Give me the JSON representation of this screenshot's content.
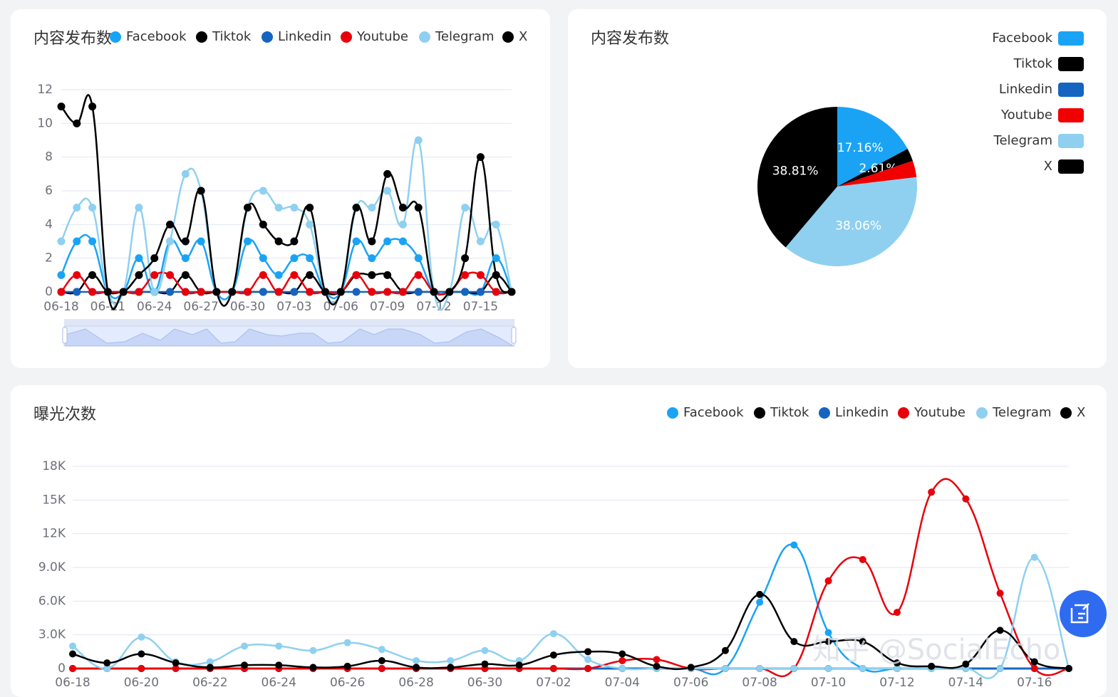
{
  "chart_data": [
    {
      "type": "line",
      "title": "内容发布数",
      "categories": [
        "06-18",
        null,
        null,
        "06-21",
        null,
        null,
        "06-24",
        null,
        null,
        "06-27",
        null,
        null,
        "06-30",
        null,
        null,
        "07-03",
        null,
        null,
        "07-06",
        null,
        null,
        "07-09",
        null,
        null,
        "07-12",
        null,
        null,
        "07-15",
        null,
        null
      ],
      "series": [
        {
          "name": "Facebook",
          "color": "#1aa3f5",
          "values": [
            1,
            3,
            3,
            0,
            0,
            2,
            0,
            3,
            2,
            3,
            0,
            0,
            3,
            2,
            1,
            2,
            2,
            0,
            0,
            3,
            2,
            3,
            3,
            2,
            0,
            0,
            0,
            0,
            2,
            0
          ]
        },
        {
          "name": "Tiktok",
          "color": "#000000",
          "values": [
            0,
            0,
            1,
            0,
            0,
            0,
            0,
            0,
            1,
            0,
            0,
            0,
            0,
            0,
            0,
            0,
            1,
            0,
            0,
            1,
            1,
            1,
            0,
            0,
            0,
            0,
            0,
            0,
            1,
            0
          ]
        },
        {
          "name": "Linkedin",
          "color": "#1565c0",
          "values": [
            0,
            0,
            0,
            0,
            0,
            0,
            0,
            0,
            0,
            0,
            0,
            0,
            0,
            0,
            0,
            0,
            0,
            0,
            0,
            0,
            0,
            0,
            0,
            0,
            0,
            0,
            0,
            0,
            0,
            0
          ]
        },
        {
          "name": "Youtube",
          "color": "#e8000b",
          "values": [
            0,
            1,
            0,
            0,
            0,
            0,
            1,
            1,
            0,
            0,
            0,
            0,
            0,
            1,
            0,
            1,
            0,
            0,
            0,
            1,
            0,
            0,
            0,
            1,
            0,
            0,
            1,
            1,
            0,
            0
          ]
        },
        {
          "name": "Telegram",
          "color": "#8fd0f0",
          "values": [
            3,
            5,
            5,
            0,
            0,
            5,
            0,
            3,
            7,
            6,
            0,
            0,
            5,
            6,
            5,
            5,
            4,
            0,
            0,
            5,
            5,
            6,
            4,
            9,
            0,
            0,
            5,
            3,
            4,
            0
          ]
        },
        {
          "name": "X",
          "color": "#000000",
          "values": [
            11,
            10,
            11,
            0,
            0,
            1,
            2,
            4,
            3,
            6,
            0,
            0,
            5,
            4,
            3,
            3,
            5,
            0,
            0,
            5,
            3,
            7,
            5,
            5,
            0,
            0,
            2,
            8,
            1,
            0
          ]
        }
      ],
      "ylim": [
        0,
        12
      ],
      "yticks": [
        0,
        2,
        4,
        6,
        8,
        10,
        12
      ],
      "grid": true
    },
    {
      "type": "pie",
      "title": "内容发布数",
      "categories": [
        "Facebook",
        "Tiktok",
        "Linkedin",
        "Youtube",
        "Telegram",
        "X"
      ],
      "values": [
        17.16,
        2.61,
        0,
        3.36,
        38.06,
        38.81
      ],
      "value_labels": [
        "17.16%",
        "2.61%",
        null,
        null,
        "38.06%",
        "38.81%"
      ],
      "colors": [
        "#1aa3f5",
        "#000000",
        "#1565c0",
        "#f00000",
        "#8fd0f0",
        "#000000"
      ]
    },
    {
      "type": "line",
      "title": "曝光次数",
      "categories": [
        "06-18",
        null,
        "06-20",
        null,
        "06-22",
        null,
        "06-24",
        null,
        "06-26",
        null,
        "06-28",
        null,
        "06-30",
        null,
        "07-02",
        null,
        "07-04",
        null,
        "07-06",
        null,
        "07-08",
        null,
        "07-10",
        null,
        "07-12",
        null,
        "07-14",
        null,
        "07-16",
        null
      ],
      "series": [
        {
          "name": "Facebook",
          "color": "#1aa3f5",
          "values": [
            0,
            0,
            0,
            0,
            0,
            0,
            0,
            0,
            0,
            0,
            0,
            0,
            0,
            0,
            0,
            0,
            0,
            0,
            0,
            0,
            5900,
            11000,
            3200,
            0,
            0,
            0,
            0,
            0,
            0,
            0
          ]
        },
        {
          "name": "Tiktok",
          "color": "#000000",
          "values": [
            0,
            0,
            0,
            0,
            0,
            0,
            0,
            0,
            0,
            0,
            0,
            0,
            0,
            0,
            0,
            0,
            0,
            0,
            0,
            0,
            0,
            0,
            0,
            0,
            0,
            0,
            0,
            0,
            0,
            0
          ]
        },
        {
          "name": "Linkedin",
          "color": "#1565c0",
          "values": [
            0,
            0,
            0,
            0,
            0,
            0,
            0,
            0,
            0,
            0,
            0,
            0,
            0,
            0,
            0,
            0,
            0,
            0,
            0,
            0,
            0,
            0,
            0,
            0,
            0,
            0,
            0,
            0,
            0,
            0
          ]
        },
        {
          "name": "Youtube",
          "color": "#e8000b",
          "values": [
            0,
            0,
            0,
            0,
            0,
            0,
            0,
            0,
            0,
            0,
            0,
            0,
            0,
            0,
            0,
            0,
            700,
            800,
            0,
            0,
            0,
            0,
            7800,
            9700,
            5000,
            15700,
            15100,
            6700,
            0,
            0
          ]
        },
        {
          "name": "Telegram",
          "color": "#8fd0f0",
          "values": [
            2000,
            0,
            2800,
            600,
            600,
            2000,
            2000,
            1600,
            2300,
            1700,
            700,
            700,
            1600,
            700,
            3100,
            800,
            0,
            0,
            0,
            0,
            0,
            0,
            0,
            0,
            0,
            0,
            0,
            0,
            9900,
            0
          ]
        },
        {
          "name": "X",
          "color": "#000000",
          "values": [
            1300,
            500,
            1300,
            500,
            100,
            300,
            300,
            100,
            200,
            700,
            100,
            100,
            400,
            300,
            1200,
            1500,
            1300,
            200,
            100,
            1600,
            6600,
            2400,
            2400,
            2400,
            500,
            200,
            400,
            3400,
            600,
            0
          ]
        }
      ],
      "ylim": [
        0,
        18000
      ],
      "yticks": [
        0,
        {
          "value": 3000,
          "label": "3.0K"
        },
        {
          "value": 6000,
          "label": "6.0K"
        },
        {
          "value": 9000,
          "label": "9.0K"
        },
        {
          "value": 12000,
          "label": "12K"
        },
        {
          "value": 15000,
          "label": "15K"
        },
        {
          "value": 18000,
          "label": "18K"
        }
      ],
      "grid": true
    }
  ],
  "watermark": "知乎 @SocialEcho"
}
